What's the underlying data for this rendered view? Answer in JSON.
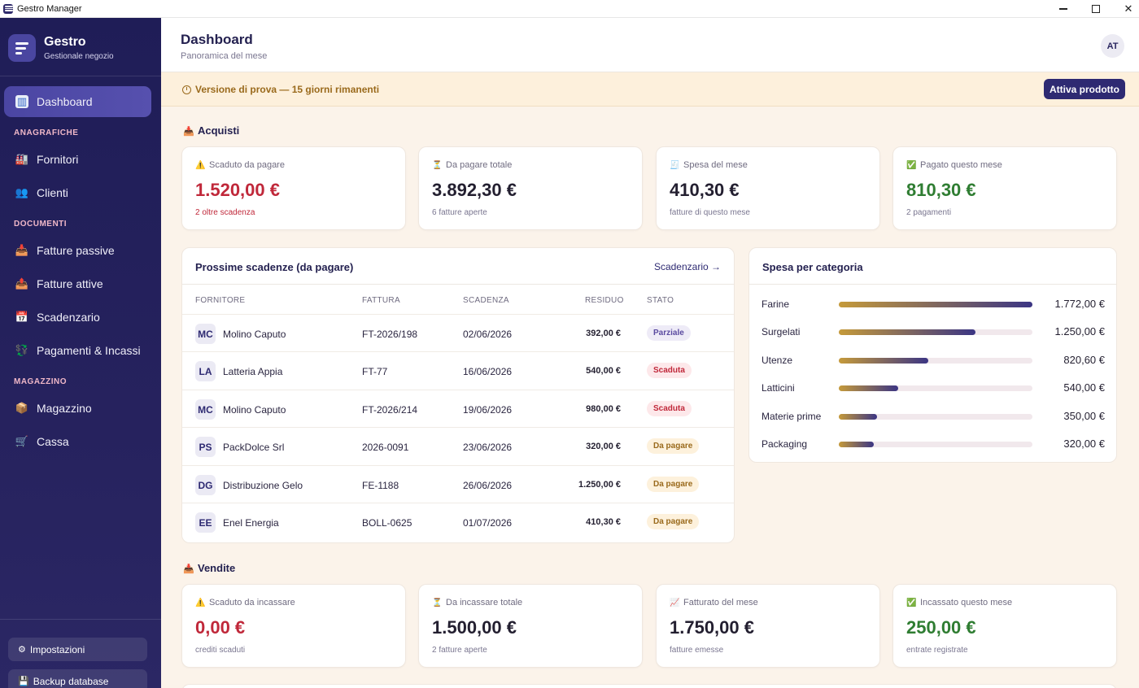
{
  "window": {
    "title": "Gestro Manager"
  },
  "brand": {
    "name": "Gestro",
    "subtitle": "Gestionale negozio"
  },
  "nav": {
    "dashboard": "Dashboard",
    "sec_anagrafiche": "ANAGRAFICHE",
    "fornitori": "Fornitori",
    "clienti": "Clienti",
    "sec_documenti": "DOCUMENTI",
    "fatture_passive": "Fatture passive",
    "fatture_attive": "Fatture attive",
    "scadenzario": "Scadenzario",
    "pagamenti": "Pagamenti & Incassi",
    "sec_magazzino": "MAGAZZINO",
    "magazzino": "Magazzino",
    "cassa": "Cassa"
  },
  "sidebar_bottom": {
    "impostazioni": "Impostazioni",
    "backup": "Backup database"
  },
  "header": {
    "title": "Dashboard",
    "subtitle": "Panoramica del mese",
    "avatar": "AT"
  },
  "banner": {
    "text": "Versione di prova — 15 giorni rimanenti",
    "button": "Attiva prodotto"
  },
  "acquisti": {
    "title": "Acquisti",
    "cards": [
      {
        "icon": "⚠️",
        "label": "Scaduto da pagare",
        "value": "1.520,00 €",
        "sub": "2 oltre scadenza"
      },
      {
        "icon": "⏳",
        "label": "Da pagare totale",
        "value": "3.892,30 €",
        "sub": "6 fatture aperte"
      },
      {
        "icon": "🧾",
        "label": "Spesa del mese",
        "value": "410,30 €",
        "sub": "fatture di questo mese"
      },
      {
        "icon": "✅",
        "label": "Pagato questo mese",
        "value": "810,30 €",
        "sub": "2 pagamenti"
      }
    ]
  },
  "scadenze": {
    "title": "Prossime scadenze (da pagare)",
    "link": "Scadenzario →",
    "columns": [
      "FORNITORE",
      "FATTURA",
      "SCADENZA",
      "RESIDUO",
      "STATO"
    ],
    "rows": [
      {
        "initials": "MC",
        "fornitore": "Molino Caputo",
        "fattura": "FT-2026/198",
        "scadenza": "02/06/2026",
        "residuo": "392,00 €",
        "stato": "Parziale"
      },
      {
        "initials": "LA",
        "fornitore": "Latteria Appia",
        "fattura": "FT-77",
        "scadenza": "16/06/2026",
        "residuo": "540,00 €",
        "stato": "Scaduta"
      },
      {
        "initials": "MC",
        "fornitore": "Molino Caputo",
        "fattura": "FT-2026/214",
        "scadenza": "19/06/2026",
        "residuo": "980,00 €",
        "stato": "Scaduta"
      },
      {
        "initials": "PS",
        "fornitore": "PackDolce Srl",
        "fattura": "2026-0091",
        "scadenza": "23/06/2026",
        "residuo": "320,00 €",
        "stato": "Da pagare"
      },
      {
        "initials": "DG",
        "fornitore": "Distribuzione Gelo",
        "fattura": "FE-1188",
        "scadenza": "26/06/2026",
        "residuo": "1.250,00 €",
        "stato": "Da pagare"
      },
      {
        "initials": "EE",
        "fornitore": "Enel Energia",
        "fattura": "BOLL-0625",
        "scadenza": "01/07/2026",
        "residuo": "410,30 €",
        "stato": "Da pagare"
      }
    ]
  },
  "categorie": {
    "title": "Spesa per categoria",
    "items": [
      {
        "name": "Farine",
        "value": "1.772,00 €",
        "fraction": 1.0
      },
      {
        "name": "Surgelati",
        "value": "1.250,00 €",
        "fraction": 0.705
      },
      {
        "name": "Utenze",
        "value": "820,60 €",
        "fraction": 0.463
      },
      {
        "name": "Latticini",
        "value": "540,00 €",
        "fraction": 0.305
      },
      {
        "name": "Materie prime",
        "value": "350,00 €",
        "fraction": 0.198
      },
      {
        "name": "Packaging",
        "value": "320,00 €",
        "fraction": 0.181
      }
    ]
  },
  "vendite": {
    "title": "Vendite",
    "cards": [
      {
        "icon": "⚠️",
        "label": "Scaduto da incassare",
        "value": "0,00 €",
        "sub": "crediti scaduti"
      },
      {
        "icon": "⏳",
        "label": "Da incassare totale",
        "value": "1.500,00 €",
        "sub": "2 fatture aperte"
      },
      {
        "icon": "📈",
        "label": "Fatturato del mese",
        "value": "1.750,00 €",
        "sub": "fatture emesse"
      },
      {
        "icon": "✅",
        "label": "Incassato questo mese",
        "value": "250,00 €",
        "sub": "entrate registrate"
      }
    ]
  }
}
